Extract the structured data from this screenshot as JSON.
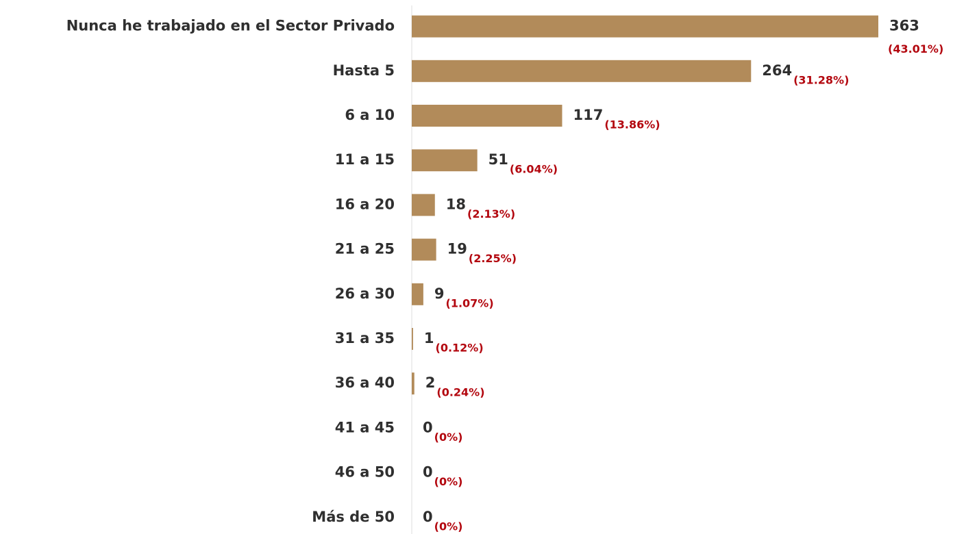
{
  "chart_data": {
    "type": "bar",
    "orientation": "horizontal",
    "categories": [
      "Nunca he trabajado en el Sector Privado",
      "Hasta 5",
      "6 a 10",
      "11 a 15",
      "16 a 20",
      "21 a 25",
      "26 a 30",
      "31 a 35",
      "36 a 40",
      "41 a 45",
      "46 a 50",
      "Más de 50"
    ],
    "values": [
      363,
      264,
      117,
      51,
      18,
      19,
      9,
      1,
      2,
      0,
      0,
      0
    ],
    "percent_labels": [
      "(43.01%)",
      "(31.28%)",
      "(13.86%)",
      "(6.04%)",
      "(2.13%)",
      "(2.25%)",
      "(1.07%)",
      "(0.12%)",
      "(0.24%)",
      "(0%)",
      "(0%)",
      "(0%)"
    ],
    "color": "#b28b5a",
    "xlim": [
      0,
      363
    ]
  }
}
